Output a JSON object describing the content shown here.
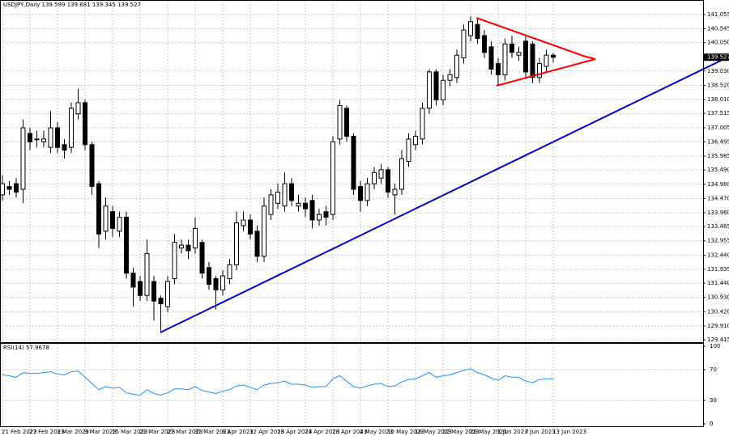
{
  "chart_data": [
    {
      "type": "candlestick",
      "title": "USDJPY,Daily  139.599 139.681 139.345 139.527",
      "categories": [
        "21 Feb 2023",
        null,
        null,
        null,
        "27 Feb 2023",
        null,
        null,
        null,
        "3 Mar 2023",
        null,
        null,
        null,
        "9 Mar 2023",
        null,
        null,
        null,
        "15 Mar 2023",
        null,
        null,
        null,
        "21 Mar 2023",
        null,
        null,
        null,
        "27 Mar 2023",
        null,
        null,
        null,
        "31 Mar 2023",
        null,
        null,
        null,
        "6 Apr 2023",
        null,
        null,
        null,
        "12 Apr 2023",
        null,
        null,
        null,
        "18 Apr 2023",
        null,
        null,
        null,
        "24 Apr 2023",
        null,
        null,
        null,
        "28 Apr 2023",
        null,
        null,
        null,
        "4 May 2023",
        null,
        null,
        null,
        "10 May 2023",
        null,
        null,
        null,
        "16 May 2023",
        null,
        null,
        null,
        "22 May 2023",
        null,
        null,
        null,
        "26 May 2023",
        null,
        null,
        null,
        "1 Jun 2023",
        null,
        null,
        null,
        "7 Jun 2023",
        null,
        null,
        null,
        "13 Jun 2023"
      ],
      "open": [
        134.6,
        134.9,
        135.0,
        134.8,
        136.8,
        136.6,
        136.5,
        136.3,
        137.0,
        136.4,
        136.3,
        137.5,
        137.9,
        136.4,
        135.0,
        133.3,
        134.0,
        133.3,
        133.8,
        131.8,
        131.5,
        131.0,
        131.5,
        130.9,
        130.6,
        131.6,
        132.7,
        132.8,
        132.7,
        132.9,
        132.0,
        131.6,
        131.2,
        131.6,
        132.1,
        133.5,
        133.7,
        133.3,
        132.4,
        133.9,
        134.3,
        134.2,
        135.0,
        134.2,
        134.3,
        134.4,
        133.7,
        134.0,
        133.9,
        136.6,
        137.7,
        136.7,
        134.9,
        134.4,
        135.0,
        135.2,
        135.5,
        134.6,
        134.8,
        135.8,
        136.4,
        136.6,
        137.7,
        139.0,
        138.0,
        138.7,
        138.8,
        139.5,
        140.3,
        140.7,
        140.3,
        139.9,
        139.3,
        138.9,
        140.0,
        139.6,
        140.1,
        140.0,
        138.8,
        139.2,
        139.599
      ],
      "high": [
        135.3,
        135.1,
        135.2,
        137.3,
        137.0,
        136.9,
        136.9,
        137.6,
        137.2,
        136.6,
        137.9,
        138.4,
        138.0,
        136.5,
        135.1,
        134.5,
        134.2,
        134.0,
        134.0,
        132.0,
        131.7,
        133.0,
        131.7,
        131.0,
        131.7,
        133.2,
        133.0,
        133.0,
        133.8,
        133.0,
        132.2,
        131.7,
        131.9,
        132.3,
        134.0,
        134.0,
        133.9,
        133.5,
        134.5,
        134.8,
        135.0,
        135.4,
        135.2,
        134.6,
        134.5,
        134.6,
        134.1,
        134.2,
        136.7,
        138.0,
        137.8,
        136.8,
        135.1,
        135.2,
        135.6,
        135.7,
        135.6,
        135.0,
        136.2,
        136.8,
        136.9,
        137.9,
        139.1,
        139.1,
        138.9,
        139.1,
        139.8,
        140.7,
        141.0,
        140.9,
        140.5,
        140.1,
        139.5,
        140.2,
        140.3,
        139.9,
        140.3,
        140.1,
        139.5,
        139.8,
        139.681
      ],
      "low": [
        134.4,
        134.6,
        134.5,
        134.3,
        136.2,
        136.3,
        136.3,
        136.1,
        136.1,
        135.9,
        136.1,
        137.3,
        136.2,
        134.6,
        132.7,
        133.0,
        133.1,
        133.1,
        131.6,
        130.6,
        130.8,
        130.8,
        130.1,
        129.65,
        130.4,
        131.4,
        132.5,
        132.3,
        132.5,
        131.6,
        131.2,
        130.5,
        131.0,
        131.4,
        131.9,
        133.3,
        133.0,
        132.2,
        132.2,
        133.7,
        134.1,
        134.0,
        134.2,
        134.0,
        133.8,
        133.4,
        133.5,
        133.5,
        133.7,
        136.4,
        136.5,
        134.6,
        134.0,
        134.2,
        134.8,
        135.0,
        134.5,
        133.9,
        134.6,
        135.6,
        136.2,
        136.4,
        137.5,
        137.8,
        137.8,
        138.5,
        138.6,
        139.3,
        140.1,
        140.0,
        139.5,
        138.9,
        138.5,
        138.7,
        139.5,
        139.4,
        138.8,
        138.6,
        138.6,
        139.0,
        139.345
      ],
      "close": [
        135.0,
        134.8,
        134.7,
        137.0,
        136.5,
        136.6,
        136.6,
        137.0,
        136.3,
        136.2,
        137.7,
        137.9,
        136.4,
        134.9,
        133.2,
        134.2,
        133.4,
        133.8,
        131.8,
        131.3,
        131.0,
        132.5,
        130.8,
        130.7,
        131.5,
        132.9,
        132.8,
        132.6,
        133.4,
        131.8,
        131.4,
        131.2,
        131.7,
        132.1,
        133.6,
        133.7,
        133.2,
        132.4,
        134.2,
        134.6,
        134.7,
        135.0,
        134.4,
        134.3,
        134.1,
        133.7,
        133.9,
        133.8,
        136.5,
        137.8,
        136.7,
        134.8,
        134.4,
        135.0,
        135.4,
        135.5,
        134.7,
        134.8,
        135.9,
        136.6,
        136.7,
        137.7,
        139.0,
        138.0,
        138.7,
        138.9,
        139.6,
        140.5,
        140.8,
        140.2,
        139.7,
        139.1,
        138.9,
        140.0,
        139.7,
        139.7,
        139.0,
        138.8,
        139.3,
        139.6,
        139.527
      ],
      "ylim": [
        129.3,
        141.43
      ],
      "yticks": [
        141.055,
        140.545,
        {
          "value": 140.05,
          "label": "140.050"
        },
        {
          "value": 139.03,
          "label": "139.030"
        },
        {
          "value": 138.52,
          "label": "138.520"
        },
        {
          "value": 138.01,
          "label": "138.010"
        },
        137.515,
        137.005,
        136.495,
        135.985,
        {
          "value": 135.49,
          "label": "135.490"
        },
        {
          "value": 134.98,
          "label": "134.980"
        },
        {
          "value": 134.47,
          "label": "134.470"
        },
        {
          "value": 133.96,
          "label": "133.960"
        },
        133.465,
        132.955,
        {
          "value": 132.44,
          "label": "132.440"
        },
        131.935,
        {
          "value": 131.44,
          "label": "131.440"
        },
        {
          "value": 130.93,
          "label": "130.930"
        },
        {
          "value": 130.42,
          "label": "130.420"
        },
        {
          "value": 129.91,
          "label": "129.910"
        },
        129.415
      ],
      "grid": true
    },
    {
      "type": "line",
      "title": "RSI(14) 57.9678",
      "color": "#1e90ff",
      "values": [
        63,
        62,
        60,
        66,
        65,
        65,
        66,
        67,
        64,
        63,
        67,
        68,
        60,
        52,
        44,
        48,
        46,
        47,
        40,
        38,
        37,
        44,
        39,
        37,
        40,
        45,
        45,
        44,
        48,
        43,
        41,
        39,
        42,
        44,
        49,
        50,
        47,
        44,
        50,
        52,
        53,
        55,
        51,
        51,
        50,
        47,
        48,
        48,
        58,
        62,
        55,
        48,
        46,
        49,
        51,
        52,
        48,
        49,
        54,
        57,
        58,
        62,
        66,
        60,
        62,
        63,
        66,
        69,
        71,
        66,
        63,
        59,
        56,
        62,
        60,
        60,
        55,
        53,
        57,
        58,
        57.9678
      ],
      "ylim": [
        -4.2,
        104.2
      ],
      "yticks": [
        100,
        70,
        30,
        0
      ]
    }
  ]
}
